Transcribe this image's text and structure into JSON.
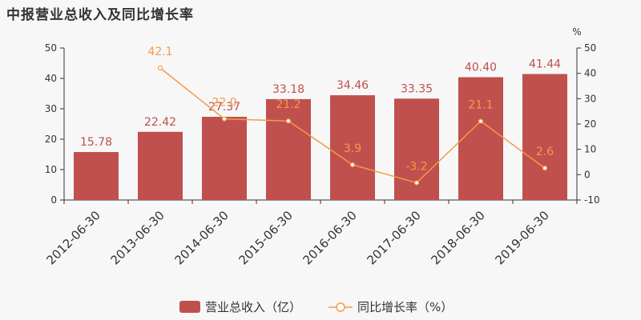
{
  "chart_data": {
    "title": "中报营业总收入及同比增长率",
    "categories": [
      "2012-06-30",
      "2013-06-30",
      "2014-06-30",
      "2015-06-30",
      "2016-06-30",
      "2017-06-30",
      "2018-06-30",
      "2019-06-30"
    ],
    "series": [
      {
        "name": "营业总收入（亿）",
        "type": "bar",
        "axis": "left",
        "values": [
          15.78,
          22.42,
          27.37,
          33.18,
          34.46,
          33.35,
          40.4,
          41.44
        ],
        "labels": [
          "15.78",
          "22.42",
          "27.37",
          "33.18",
          "34.46",
          "33.35",
          "40.40",
          "41.44"
        ],
        "color": "#c0504d"
      },
      {
        "name": "同比增长率（%）",
        "type": "line",
        "axis": "right",
        "values": [
          null,
          42.1,
          22.0,
          21.2,
          3.9,
          -3.2,
          21.1,
          2.6
        ],
        "labels": [
          "",
          "42.1",
          "22.0",
          "21.2",
          "3.9",
          "-3.2",
          "21.1",
          "2.6"
        ],
        "color": "#f29b4a"
      }
    ],
    "y_left": {
      "range": [
        0,
        50
      ],
      "ticks": [
        0,
        10,
        20,
        30,
        40,
        50
      ]
    },
    "y_right": {
      "range": [
        -10,
        50
      ],
      "ticks": [
        -10,
        0,
        10,
        20,
        30,
        40,
        50
      ],
      "unit": "%"
    },
    "legend": {
      "placement": "bottom-center"
    }
  }
}
